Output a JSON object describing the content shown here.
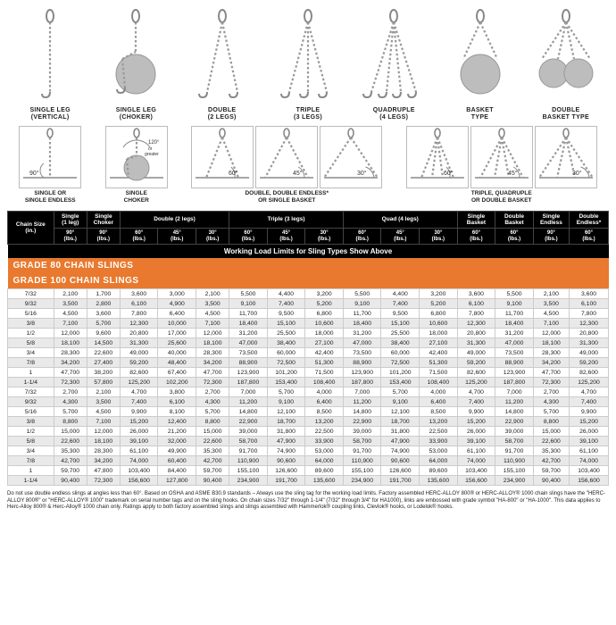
{
  "colors": {
    "header_bg": "#000000",
    "header_fg": "#ffffff",
    "grade_bg": "#e8792e",
    "stripe": "#e9e9e9",
    "border": "#cccccc"
  },
  "slingTypes": [
    {
      "label": "SINGLE LEG\n(VERTICAL)"
    },
    {
      "label": "SINGLE LEG\n(CHOKER)"
    },
    {
      "label": "DOUBLE\n(2 LEGS)"
    },
    {
      "label": "TRIPLE\n(3 LEGS)"
    },
    {
      "label": "QUADRUPLE\n(4 LEGS)"
    },
    {
      "label": "BASKET\nTYPE"
    },
    {
      "label": "DOUBLE\nBASKET TYPE"
    }
  ],
  "angleGroups": [
    {
      "cells": [
        {
          "deg": "90°",
          "sub": "SINGLE OR\nSINGLE ENDLESS"
        }
      ],
      "legs": 1
    },
    {
      "cells": [
        {
          "deg": "120°\nor\ngreater",
          "sub": "SINGLE\nCHOKER"
        }
      ],
      "legs": 1,
      "choker": true
    },
    {
      "cells": [
        {
          "deg": "60°"
        },
        {
          "deg": "45°"
        },
        {
          "deg": "30°"
        }
      ],
      "sub": "DOUBLE, DOUBLE ENDLESS*\nOR SINGLE BASKET",
      "legs": 2
    },
    {
      "cells": [
        {
          "deg": "60°"
        },
        {
          "deg": "45°"
        },
        {
          "deg": "30°"
        }
      ],
      "sub": "TRIPLE, QUADRUPLE\nOR DOUBLE BASKET",
      "legs": 4
    }
  ],
  "tableTitle": "Working Load Limits for Sling Types Show Above",
  "headerTop": [
    {
      "label": "Chain Size\n(in.)",
      "rowspan": 2
    },
    {
      "label": "Single\n(1 leg)"
    },
    {
      "label": "Single\nChoker"
    },
    {
      "label": "Double (2 legs)",
      "colspan": 3
    },
    {
      "label": "Triple (3 legs)",
      "colspan": 3
    },
    {
      "label": "Quad (4 legs)",
      "colspan": 3
    },
    {
      "label": "Single\nBasket"
    },
    {
      "label": "Double\nBasket"
    },
    {
      "label": "Single\nEndless"
    },
    {
      "label": "Double\nEndless*"
    }
  ],
  "headerSub": [
    "90°\n(lbs.)",
    "90°\n(lbs.)",
    "60°\n(lbs.)",
    "45°\n(lbs.)",
    "30°\n(lbs.)",
    "60°\n(lbs.)",
    "45°\n(lbs.)",
    "30°\n(lbs.)",
    "60°\n(lbs.)",
    "45°\n(lbs.)",
    "30°\n(lbs.)",
    "60°\n(lbs.)",
    "60°\n(lbs.)",
    "90°\n(lbs.)",
    "60°\n(lbs.)"
  ],
  "grades": [
    {
      "title": "GRADE 80 CHAIN SLINGS",
      "rows": [
        [
          "7/32",
          "2,100",
          "1,700",
          "3,600",
          "3,000",
          "2,100",
          "5,500",
          "4,400",
          "3,200",
          "5,500",
          "4,400",
          "3,200",
          "3,600",
          "5,500",
          "2,100",
          "3,600"
        ],
        [
          "9/32",
          "3,500",
          "2,800",
          "6,100",
          "4,900",
          "3,500",
          "9,100",
          "7,400",
          "5,200",
          "9,100",
          "7,400",
          "5,200",
          "6,100",
          "9,100",
          "3,500",
          "6,100"
        ],
        [
          "5/16",
          "4,500",
          "3,600",
          "7,800",
          "6,400",
          "4,500",
          "11,700",
          "9,500",
          "6,800",
          "11,700",
          "9,500",
          "6,800",
          "7,800",
          "11,700",
          "4,500",
          "7,800"
        ],
        [
          "3/8",
          "7,100",
          "5,700",
          "12,300",
          "10,000",
          "7,100",
          "18,400",
          "15,100",
          "10,600",
          "18,400",
          "15,100",
          "10,600",
          "12,300",
          "18,400",
          "7,100",
          "12,300"
        ],
        [
          "1/2",
          "12,000",
          "9,600",
          "20,800",
          "17,000",
          "12,000",
          "31,200",
          "25,500",
          "18,000",
          "31,200",
          "25,500",
          "18,000",
          "20,800",
          "31,200",
          "12,000",
          "20,800"
        ],
        [
          "5/8",
          "18,100",
          "14,500",
          "31,300",
          "25,600",
          "18,100",
          "47,000",
          "38,400",
          "27,100",
          "47,000",
          "38,400",
          "27,100",
          "31,300",
          "47,000",
          "18,100",
          "31,300"
        ],
        [
          "3/4",
          "28,300",
          "22,600",
          "49,000",
          "40,000",
          "28,300",
          "73,500",
          "60,000",
          "42,400",
          "73,500",
          "60,000",
          "42,400",
          "49,000",
          "73,500",
          "28,300",
          "49,000"
        ],
        [
          "7/8",
          "34,200",
          "27,400",
          "59,200",
          "48,400",
          "34,200",
          "88,900",
          "72,500",
          "51,300",
          "88,900",
          "72,500",
          "51,300",
          "59,200",
          "88,900",
          "34,200",
          "59,200"
        ],
        [
          "1",
          "47,700",
          "38,200",
          "82,600",
          "67,400",
          "47,700",
          "123,900",
          "101,200",
          "71,500",
          "123,900",
          "101,200",
          "71,500",
          "82,600",
          "123,900",
          "47,700",
          "82,600"
        ],
        [
          "1-1/4",
          "72,300",
          "57,800",
          "125,200",
          "102,200",
          "72,300",
          "187,800",
          "153,400",
          "108,400",
          "187,800",
          "153,400",
          "108,400",
          "125,200",
          "187,800",
          "72,300",
          "125,200"
        ]
      ]
    },
    {
      "title": "GRADE 100 CHAIN SLINGS",
      "rows": [
        [
          "7/32",
          "2,700",
          "2,100",
          "4,700",
          "3,800",
          "2,700",
          "7,000",
          "5,700",
          "4,000",
          "7,000",
          "5,700",
          "4,000",
          "4,700",
          "7,000",
          "2,700",
          "4,700"
        ],
        [
          "9/32",
          "4,300",
          "3,500",
          "7,400",
          "6,100",
          "4,300",
          "11,200",
          "9,100",
          "6,400",
          "11,200",
          "9,100",
          "6,400",
          "7,400",
          "11,200",
          "4,300",
          "7,400"
        ],
        [
          "5/16",
          "5,700",
          "4,500",
          "9,900",
          "8,100",
          "5,700",
          "14,800",
          "12,100",
          "8,500",
          "14,800",
          "12,100",
          "8,500",
          "9,900",
          "14,800",
          "5,700",
          "9,900"
        ],
        [
          "3/8",
          "8,800",
          "7,100",
          "15,200",
          "12,400",
          "8,800",
          "22,900",
          "18,700",
          "13,200",
          "22,900",
          "18,700",
          "13,200",
          "15,200",
          "22,900",
          "8,800",
          "15,200"
        ],
        [
          "1/2",
          "15,000",
          "12,000",
          "26,000",
          "21,200",
          "15,000",
          "39,000",
          "31,800",
          "22,500",
          "39,000",
          "31,800",
          "22,500",
          "26,000",
          "39,000",
          "15,000",
          "26,000"
        ],
        [
          "5/8",
          "22,600",
          "18,100",
          "39,100",
          "32,000",
          "22,600",
          "58,700",
          "47,900",
          "33,900",
          "58,700",
          "47,900",
          "33,900",
          "39,100",
          "58,700",
          "22,600",
          "39,100"
        ],
        [
          "3/4",
          "35,300",
          "28,300",
          "61,100",
          "49,900",
          "35,300",
          "91,700",
          "74,900",
          "53,000",
          "91,700",
          "74,900",
          "53,000",
          "61,100",
          "91,700",
          "35,300",
          "61,100"
        ],
        [
          "7/8",
          "42,700",
          "34,200",
          "74,000",
          "60,400",
          "42,700",
          "110,900",
          "90,600",
          "64,000",
          "110,900",
          "90,600",
          "64,000",
          "74,000",
          "110,900",
          "42,700",
          "74,000"
        ],
        [
          "1",
          "59,700",
          "47,800",
          "103,400",
          "84,400",
          "59,700",
          "155,100",
          "126,600",
          "89,600",
          "155,100",
          "126,600",
          "89,600",
          "103,400",
          "155,100",
          "59,700",
          "103,400"
        ],
        [
          "1-1/4",
          "90,400",
          "72,300",
          "156,600",
          "127,800",
          "90,400",
          "234,900",
          "191,700",
          "135,600",
          "234,900",
          "191,700",
          "135,600",
          "156,600",
          "234,900",
          "90,400",
          "156,600"
        ]
      ]
    }
  ],
  "footnote": "Do not use double endless slings at angles less than 60°. Based on OSHA and ASME B30.9 standards – Always use the sling tag for the working load limits. Factory assembled HERC-ALLOY 800® or HERC-ALLOY® 1000 chain slings have the \"HERC-ALLOY 800®\" or \"HERC-ALLOY® 1000\" trademark on serial number tags and on the sling hooks. On chain sizes 7/32\" through 1-1/4\" (7/32\" through 3/4\" for HA1000), links are embossed with grade symbol \"HA-800\" or \"HA-1000\". This data applies to Herc-Alloy 800® & Herc-Alloy® 1000 chain only. Ratings apply to both factory assembled slings and slings assembled with Hammerlok® coupling links, Clevlok® hooks, or Lodelok® hooks."
}
